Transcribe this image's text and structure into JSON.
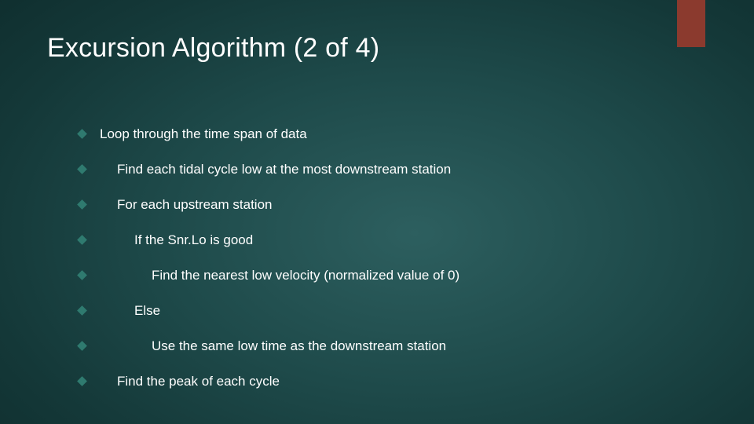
{
  "slide": {
    "title": "Excursion Algorithm (2 of 4)",
    "accent_color": "#8b3a2e",
    "bullet_color": "#2f7a6f",
    "background_gradient": {
      "center": "#2d5f5f",
      "mid": "#1e4a4a",
      "outer": "#143838",
      "edge": "#0d2a2a"
    },
    "title_fontsize": 34,
    "body_fontsize": 17,
    "items": [
      {
        "text": "Loop through the time span of data",
        "indent": 0
      },
      {
        "text": "Find each tidal cycle low at the most downstream station",
        "indent": 1
      },
      {
        "text": "For each upstream station",
        "indent": 1
      },
      {
        "text": "If the Snr.Lo is good",
        "indent": 2
      },
      {
        "text": "Find the nearest low velocity (normalized value of 0)",
        "indent": 3
      },
      {
        "text": "Else",
        "indent": 2
      },
      {
        "text": "Use the same low time as the downstream station",
        "indent": 3
      },
      {
        "text": "Find the peak of each cycle",
        "indent": 1
      }
    ]
  }
}
